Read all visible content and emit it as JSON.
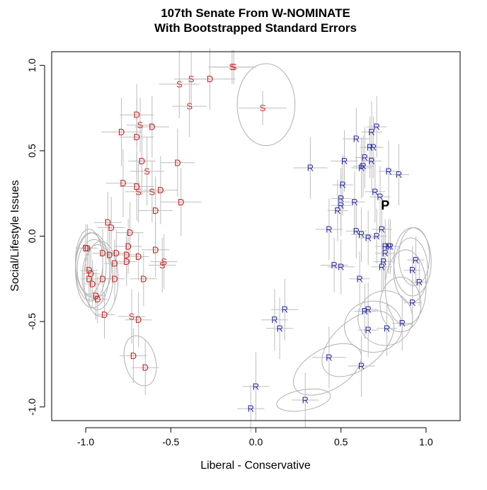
{
  "chart_data": {
    "type": "scatter",
    "title": "107th Senate From W-NOMINATE",
    "subtitle": "With Bootstrapped Standard Errors",
    "xlabel": "Liberal - Conservative",
    "ylabel": "Social/Lifestyle Issues",
    "xlim": [
      -1.2,
      1.2
    ],
    "ylim": [
      -1.08,
      1.08
    ],
    "xticks": [
      -1.0,
      -0.5,
      0.0,
      0.5,
      1.0
    ],
    "xtick_labels": [
      "-1.0",
      "-0.5",
      "0.0",
      "0.5",
      "1.0"
    ],
    "yticks": [
      -1.0,
      -0.5,
      0.0,
      0.5,
      1.0
    ],
    "ytick_labels": [
      "-1.0",
      "-0.5",
      "0.0",
      "0.5",
      "1.0"
    ],
    "legend": "none",
    "points": [
      {
        "label": "S",
        "x": -0.14,
        "y": 0.99,
        "xerr": 0.14,
        "yerr": 0.1
      },
      {
        "label": "S",
        "x": -0.13,
        "y": 0.99,
        "xerr": 0.12,
        "yerr": 0.1
      },
      {
        "label": "D",
        "x": -0.27,
        "y": 0.92,
        "xerr": 0.15,
        "yerr": 0.18
      },
      {
        "label": "S",
        "x": -0.38,
        "y": 0.92,
        "xerr": 0.1,
        "yerr": 0.16
      },
      {
        "label": "S",
        "x": -0.45,
        "y": 0.89,
        "xerr": 0.12,
        "yerr": 0.2
      },
      {
        "label": "S",
        "x": -0.39,
        "y": 0.76,
        "xerr": 0.1,
        "yerr": 0.18
      },
      {
        "label": "S",
        "x": 0.04,
        "y": 0.75,
        "xerr": 0.14,
        "yerr": 0.1
      },
      {
        "label": "D",
        "x": -0.7,
        "y": 0.71,
        "xerr": 0.1,
        "yerr": 0.18
      },
      {
        "label": "S",
        "x": -0.68,
        "y": 0.65,
        "xerr": 0.08,
        "yerr": 0.16
      },
      {
        "label": "D",
        "x": -0.61,
        "y": 0.64,
        "xerr": 0.1,
        "yerr": 0.18
      },
      {
        "label": "D",
        "x": -0.79,
        "y": 0.61,
        "xerr": 0.12,
        "yerr": 0.2
      },
      {
        "label": "D",
        "x": -0.7,
        "y": 0.58,
        "xerr": 0.1,
        "yerr": 0.22
      },
      {
        "label": "D",
        "x": -0.67,
        "y": 0.44,
        "xerr": 0.08,
        "yerr": 0.2
      },
      {
        "label": "D",
        "x": -0.46,
        "y": 0.43,
        "xerr": 0.1,
        "yerr": 0.2
      },
      {
        "label": "S",
        "x": -0.64,
        "y": 0.38,
        "xerr": 0.1,
        "yerr": 0.2
      },
      {
        "label": "D",
        "x": -0.78,
        "y": 0.31,
        "xerr": 0.1,
        "yerr": 0.2
      },
      {
        "label": "D",
        "x": -0.7,
        "y": 0.29,
        "xerr": 0.1,
        "yerr": 0.2
      },
      {
        "label": "D",
        "x": -0.56,
        "y": 0.27,
        "xerr": 0.1,
        "yerr": 0.2
      },
      {
        "label": "S",
        "x": -0.61,
        "y": 0.26,
        "xerr": 0.08,
        "yerr": 0.18
      },
      {
        "label": "S",
        "x": -0.69,
        "y": 0.26,
        "xerr": 0.08,
        "yerr": 0.18
      },
      {
        "label": "D",
        "x": -0.44,
        "y": 0.2,
        "xerr": 0.12,
        "yerr": 0.2
      },
      {
        "label": "D",
        "x": -0.59,
        "y": 0.15,
        "xerr": 0.1,
        "yerr": 0.2
      },
      {
        "label": "D",
        "x": -0.87,
        "y": 0.08,
        "xerr": 0.08,
        "yerr": 0.18
      },
      {
        "label": "D",
        "x": -0.85,
        "y": 0.05,
        "xerr": 0.08,
        "yerr": 0.18
      },
      {
        "label": "D",
        "x": -0.74,
        "y": 0.02,
        "xerr": 0.08,
        "yerr": 0.18
      },
      {
        "label": "D",
        "x": -0.75,
        "y": -0.06,
        "xerr": 0.08,
        "yerr": 0.16
      },
      {
        "label": "D",
        "x": -1.0,
        "y": -0.07,
        "xerr": 0.06,
        "yerr": 0.14
      },
      {
        "label": "D",
        "x": -0.99,
        "y": -0.07,
        "xerr": 0.06,
        "yerr": 0.14
      },
      {
        "label": "D",
        "x": -0.59,
        "y": -0.08,
        "xerr": 0.08,
        "yerr": 0.16
      },
      {
        "label": "D",
        "x": -0.9,
        "y": -0.1,
        "xerr": 0.06,
        "yerr": 0.14
      },
      {
        "label": "D",
        "x": -0.82,
        "y": -0.1,
        "xerr": 0.06,
        "yerr": 0.14
      },
      {
        "label": "D",
        "x": -0.86,
        "y": -0.11,
        "xerr": 0.06,
        "yerr": 0.14
      },
      {
        "label": "D",
        "x": -0.76,
        "y": -0.11,
        "xerr": 0.06,
        "yerr": 0.14
      },
      {
        "label": "D",
        "x": -0.69,
        "y": -0.12,
        "xerr": 0.06,
        "yerr": 0.14
      },
      {
        "label": "D",
        "x": -0.76,
        "y": -0.15,
        "xerr": 0.06,
        "yerr": 0.14
      },
      {
        "label": "S",
        "x": -0.54,
        "y": -0.15,
        "xerr": 0.08,
        "yerr": 0.16
      },
      {
        "label": "D",
        "x": -0.83,
        "y": -0.16,
        "xerr": 0.06,
        "yerr": 0.14
      },
      {
        "label": "S",
        "x": -0.55,
        "y": -0.17,
        "xerr": 0.08,
        "yerr": 0.16
      },
      {
        "label": "D",
        "x": -0.98,
        "y": -0.2,
        "xerr": 0.05,
        "yerr": 0.14
      },
      {
        "label": "D",
        "x": -0.97,
        "y": -0.22,
        "xerr": 0.05,
        "yerr": 0.14
      },
      {
        "label": "D",
        "x": -0.98,
        "y": -0.25,
        "xerr": 0.05,
        "yerr": 0.14
      },
      {
        "label": "D",
        "x": -0.9,
        "y": -0.25,
        "xerr": 0.06,
        "yerr": 0.14
      },
      {
        "label": "D",
        "x": -0.83,
        "y": -0.25,
        "xerr": 0.06,
        "yerr": 0.14
      },
      {
        "label": "D",
        "x": -0.66,
        "y": -0.25,
        "xerr": 0.08,
        "yerr": 0.16
      },
      {
        "label": "D",
        "x": -0.96,
        "y": -0.28,
        "xerr": 0.05,
        "yerr": 0.14
      },
      {
        "label": "D",
        "x": -0.94,
        "y": -0.35,
        "xerr": 0.06,
        "yerr": 0.14
      },
      {
        "label": "D",
        "x": -0.93,
        "y": -0.37,
        "xerr": 0.06,
        "yerr": 0.14
      },
      {
        "label": "D",
        "x": -0.89,
        "y": -0.46,
        "xerr": 0.06,
        "yerr": 0.14
      },
      {
        "label": "S",
        "x": -0.73,
        "y": -0.47,
        "xerr": 0.08,
        "yerr": 0.16
      },
      {
        "label": "D",
        "x": -0.69,
        "y": -0.49,
        "xerr": 0.08,
        "yerr": 0.16
      },
      {
        "label": "D",
        "x": -0.72,
        "y": -0.7,
        "xerr": 0.08,
        "yerr": 0.16
      },
      {
        "label": "D",
        "x": -0.65,
        "y": -0.77,
        "xerr": 0.08,
        "yerr": 0.16
      },
      {
        "label": "R",
        "x": 0.71,
        "y": 0.64,
        "xerr": 0.06,
        "yerr": 0.18
      },
      {
        "label": "R",
        "x": 0.68,
        "y": 0.61,
        "xerr": 0.06,
        "yerr": 0.18
      },
      {
        "label": "R",
        "x": 0.59,
        "y": 0.57,
        "xerr": 0.08,
        "yerr": 0.18
      },
      {
        "label": "R",
        "x": 0.67,
        "y": 0.52,
        "xerr": 0.06,
        "yerr": 0.18
      },
      {
        "label": "R",
        "x": 0.69,
        "y": 0.52,
        "xerr": 0.06,
        "yerr": 0.18
      },
      {
        "label": "R",
        "x": 0.64,
        "y": 0.46,
        "xerr": 0.06,
        "yerr": 0.18
      },
      {
        "label": "R",
        "x": 0.52,
        "y": 0.44,
        "xerr": 0.08,
        "yerr": 0.18
      },
      {
        "label": "R",
        "x": 0.68,
        "y": 0.44,
        "xerr": 0.06,
        "yerr": 0.18
      },
      {
        "label": "R",
        "x": 0.63,
        "y": 0.41,
        "xerr": 0.06,
        "yerr": 0.18
      },
      {
        "label": "R",
        "x": 0.32,
        "y": 0.4,
        "xerr": 0.1,
        "yerr": 0.18
      },
      {
        "label": "R",
        "x": 0.62,
        "y": 0.4,
        "xerr": 0.06,
        "yerr": 0.18
      },
      {
        "label": "R",
        "x": 0.78,
        "y": 0.38,
        "xerr": 0.06,
        "yerr": 0.18
      },
      {
        "label": "R",
        "x": 0.84,
        "y": 0.36,
        "xerr": 0.06,
        "yerr": 0.18
      },
      {
        "label": "R",
        "x": 0.51,
        "y": 0.3,
        "xerr": 0.06,
        "yerr": 0.18
      },
      {
        "label": "R",
        "x": 0.7,
        "y": 0.26,
        "xerr": 0.06,
        "yerr": 0.18
      },
      {
        "label": "R",
        "x": 0.73,
        "y": 0.23,
        "xerr": 0.06,
        "yerr": 0.18
      },
      {
        "label": "R",
        "x": 0.5,
        "y": 0.22,
        "xerr": 0.06,
        "yerr": 0.18
      },
      {
        "label": "R",
        "x": 0.58,
        "y": 0.2,
        "xerr": 0.06,
        "yerr": 0.18
      },
      {
        "label": "R",
        "x": 0.5,
        "y": 0.18,
        "xerr": 0.06,
        "yerr": 0.18
      },
      {
        "label": "R",
        "x": 0.48,
        "y": 0.15,
        "xerr": 0.06,
        "yerr": 0.18
      },
      {
        "label": "R",
        "x": 0.43,
        "y": 0.04,
        "xerr": 0.08,
        "yerr": 0.18
      },
      {
        "label": "R",
        "x": 0.59,
        "y": 0.03,
        "xerr": 0.06,
        "yerr": 0.16
      },
      {
        "label": "R",
        "x": 0.74,
        "y": 0.04,
        "xerr": 0.06,
        "yerr": 0.16
      },
      {
        "label": "R",
        "x": 0.62,
        "y": 0.01,
        "xerr": 0.06,
        "yerr": 0.16
      },
      {
        "label": "R",
        "x": 0.71,
        "y": 0.0,
        "xerr": 0.06,
        "yerr": 0.16
      },
      {
        "label": "R",
        "x": 0.66,
        "y": -0.01,
        "xerr": 0.06,
        "yerr": 0.16
      },
      {
        "label": "R",
        "x": 0.76,
        "y": -0.06,
        "xerr": 0.06,
        "yerr": 0.16
      },
      {
        "label": "R",
        "x": 0.78,
        "y": -0.06,
        "xerr": 0.06,
        "yerr": 0.16
      },
      {
        "label": "R",
        "x": 0.79,
        "y": -0.06,
        "xerr": 0.06,
        "yerr": 0.16
      },
      {
        "label": "R",
        "x": 0.76,
        "y": -0.1,
        "xerr": 0.06,
        "yerr": 0.16
      },
      {
        "label": "R",
        "x": 0.94,
        "y": -0.14,
        "xerr": 0.05,
        "yerr": 0.14
      },
      {
        "label": "R",
        "x": 0.75,
        "y": -0.15,
        "xerr": 0.06,
        "yerr": 0.16
      },
      {
        "label": "R",
        "x": 0.46,
        "y": -0.17,
        "xerr": 0.08,
        "yerr": 0.16
      },
      {
        "label": "R",
        "x": 0.5,
        "y": -0.18,
        "xerr": 0.08,
        "yerr": 0.16
      },
      {
        "label": "R",
        "x": 0.74,
        "y": -0.18,
        "xerr": 0.06,
        "yerr": 0.16
      },
      {
        "label": "R",
        "x": 0.92,
        "y": -0.2,
        "xerr": 0.05,
        "yerr": 0.14
      },
      {
        "label": "R",
        "x": 0.61,
        "y": -0.25,
        "xerr": 0.06,
        "yerr": 0.16
      },
      {
        "label": "R",
        "x": 0.96,
        "y": -0.27,
        "xerr": 0.05,
        "yerr": 0.14
      },
      {
        "label": "R",
        "x": 0.92,
        "y": -0.39,
        "xerr": 0.05,
        "yerr": 0.14
      },
      {
        "label": "R",
        "x": 0.17,
        "y": -0.43,
        "xerr": 0.08,
        "yerr": 0.18
      },
      {
        "label": "R",
        "x": 0.66,
        "y": -0.43,
        "xerr": 0.06,
        "yerr": 0.16
      },
      {
        "label": "R",
        "x": 0.64,
        "y": -0.44,
        "xerr": 0.06,
        "yerr": 0.16
      },
      {
        "label": "R",
        "x": 0.11,
        "y": -0.49,
        "xerr": 0.08,
        "yerr": 0.18
      },
      {
        "label": "R",
        "x": 0.86,
        "y": -0.51,
        "xerr": 0.06,
        "yerr": 0.16
      },
      {
        "label": "R",
        "x": 0.14,
        "y": -0.54,
        "xerr": 0.08,
        "yerr": 0.18
      },
      {
        "label": "R",
        "x": 0.77,
        "y": -0.54,
        "xerr": 0.06,
        "yerr": 0.16
      },
      {
        "label": "R",
        "x": 0.66,
        "y": -0.55,
        "xerr": 0.06,
        "yerr": 0.16
      },
      {
        "label": "R",
        "x": 0.43,
        "y": -0.71,
        "xerr": 0.1,
        "yerr": 0.18
      },
      {
        "label": "R",
        "x": 0.62,
        "y": -0.76,
        "xerr": 0.08,
        "yerr": 0.18
      },
      {
        "label": "R",
        "x": 0.0,
        "y": -0.88,
        "xerr": 0.08,
        "yerr": 0.2
      },
      {
        "label": "R",
        "x": 0.29,
        "y": -0.96,
        "xerr": 0.08,
        "yerr": 0.16
      },
      {
        "label": "R",
        "x": -0.03,
        "y": -1.01,
        "xerr": 0.08,
        "yerr": 0.14
      },
      {
        "label": "P",
        "x": 0.76,
        "y": 0.18,
        "xerr": 0.0,
        "yerr": 0.0
      }
    ],
    "ellipses": [
      {
        "cx": 0.06,
        "cy": 0.77,
        "rx": 0.17,
        "ry": 0.24,
        "angle": 0
      },
      {
        "cx": -0.98,
        "cy": -0.15,
        "rx": 0.08,
        "ry": 0.19,
        "angle": 0
      },
      {
        "cx": -0.97,
        "cy": -0.18,
        "rx": 0.09,
        "ry": 0.2,
        "angle": 0
      },
      {
        "cx": -0.96,
        "cy": -0.2,
        "rx": 0.1,
        "ry": 0.22,
        "angle": 0
      },
      {
        "cx": -0.95,
        "cy": -0.19,
        "rx": 0.1,
        "ry": 0.17,
        "angle": 0
      },
      {
        "cx": -0.93,
        "cy": -0.24,
        "rx": 0.09,
        "ry": 0.19,
        "angle": 0
      },
      {
        "cx": -0.91,
        "cy": -0.25,
        "rx": 0.1,
        "ry": 0.22,
        "angle": 0
      },
      {
        "cx": -0.68,
        "cy": -0.73,
        "rx": 0.09,
        "ry": 0.15,
        "angle": -15
      },
      {
        "cx": 0.92,
        "cy": -0.15,
        "rx": 0.11,
        "ry": 0.2,
        "angle": 0
      },
      {
        "cx": 0.91,
        "cy": -0.2,
        "rx": 0.1,
        "ry": 0.19,
        "angle": 0
      },
      {
        "cx": 0.93,
        "cy": -0.12,
        "rx": 0.09,
        "ry": 0.17,
        "angle": 0
      },
      {
        "cx": 0.88,
        "cy": -0.3,
        "rx": 0.12,
        "ry": 0.22,
        "angle": 0
      },
      {
        "cx": 0.85,
        "cy": -0.4,
        "rx": 0.12,
        "ry": 0.16,
        "angle": 0
      },
      {
        "cx": 0.76,
        "cy": -0.48,
        "rx": 0.16,
        "ry": 0.16,
        "angle": 0
      },
      {
        "cx": 0.69,
        "cy": -0.53,
        "rx": 0.17,
        "ry": 0.15,
        "angle": 0
      },
      {
        "cx": 0.6,
        "cy": -0.63,
        "rx": 0.25,
        "ry": 0.14,
        "angle": -40
      },
      {
        "cx": 0.42,
        "cy": -0.78,
        "rx": 0.22,
        "ry": 0.12,
        "angle": -30
      },
      {
        "cx": 0.28,
        "cy": -0.96,
        "rx": 0.16,
        "ry": 0.06,
        "angle": -10
      }
    ]
  }
}
